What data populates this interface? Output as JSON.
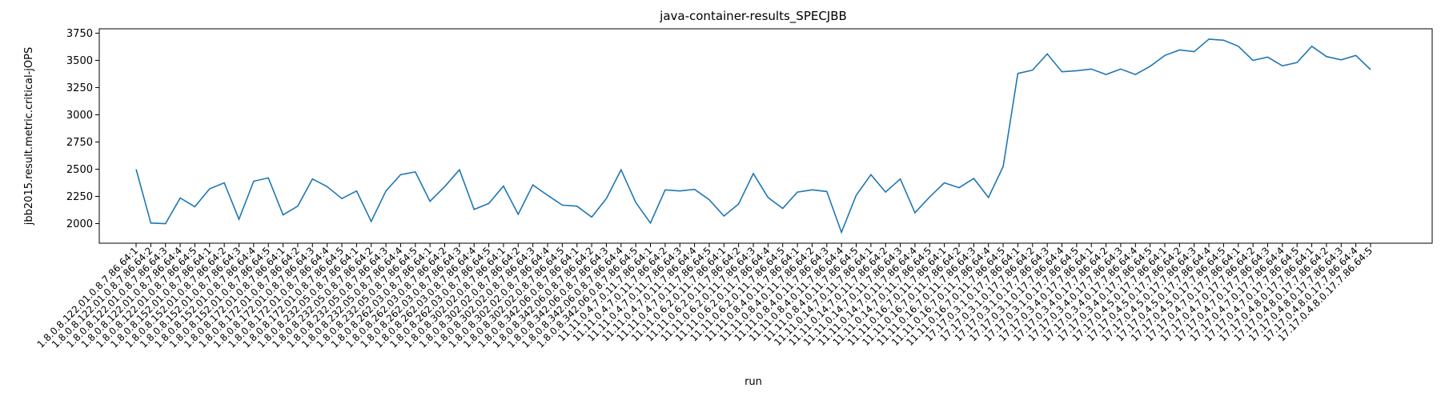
{
  "chart_data": {
    "type": "line",
    "title": "java-container-results_SPECJBB",
    "xlabel": "run",
    "ylabel": "jbb2015.result.metric.critical-jOPS",
    "ylim": [
      1820,
      3790
    ],
    "yticks": [
      2000,
      2250,
      2500,
      2750,
      3000,
      3250,
      3500,
      3750
    ],
    "grid": false,
    "legend": "none",
    "line_color": "#1f77b4",
    "categories": [
      "1.8.0.8.122.01.0.8.7.86.64:1",
      "1.8.0.8.122.01.0.8.7.86.64:2",
      "1.8.0.8.122.01.0.8.7.86.64:3",
      "1.8.0.8.122.01.0.8.7.86.64:4",
      "1.8.0.8.122.01.0.8.7.86.64:5",
      "1.8.0.8.152.01.0.8.7.86.64:1",
      "1.8.0.8.152.01.0.8.7.86.64:2",
      "1.8.0.8.152.01.0.8.7.86.64:3",
      "1.8.0.8.152.01.0.8.7.86.64:4",
      "1.8.0.8.152.01.0.8.7.86.64:5",
      "1.8.0.8.172.01.0.8.7.86.64:1",
      "1.8.0.8.172.01.0.8.7.86.64:2",
      "1.8.0.8.172.01.0.8.7.86.64:3",
      "1.8.0.8.172.01.0.8.7.86.64:4",
      "1.8.0.8.172.01.0.8.7.86.64:5",
      "1.8.0.8.232.05.0.8.7.86.64:1",
      "1.8.0.8.232.05.0.8.7.86.64:2",
      "1.8.0.8.232.05.0.8.7.86.64:3",
      "1.8.0.8.232.05.0.8.7.86.64:4",
      "1.8.0.8.232.05.0.8.7.86.64:5",
      "1.8.0.8.262.03.0.8.7.86.64:1",
      "1.8.0.8.262.03.0.8.7.86.64:2",
      "1.8.0.8.262.03.0.8.7.86.64:3",
      "1.8.0.8.262.03.0.8.7.86.64:4",
      "1.8.0.8.262.03.0.8.7.86.64:5",
      "1.8.0.8.302.02.0.8.7.86.64:1",
      "1.8.0.8.302.02.0.8.7.86.64:2",
      "1.8.0.8.302.02.0.8.7.86.64:3",
      "1.8.0.8.302.02.0.8.7.86.64:4",
      "1.8.0.8.302.02.0.8.7.86.64:5",
      "1.8.0.8.342.06.0.8.7.86.64:1",
      "1.8.0.8.342.06.0.8.7.86.64:2",
      "1.8.0.8.342.06.0.8.7.86.64:3",
      "1.8.0.8.342.06.0.8.7.86.64:4",
      "1.8.0.8.342.06.0.8.7.86.64:5",
      "11.11.0.4.7.0.11.7.86.64:1",
      "11.11.0.4.7.0.11.7.86.64:2",
      "11.11.0.4.7.0.11.7.86.64:3",
      "11.11.0.4.7.0.11.7.86.64:4",
      "11.11.0.4.7.0.11.7.86.64:5",
      "11.11.0.6.2.0.11.7.86.64:1",
      "11.11.0.6.2.0.11.7.86.64:2",
      "11.11.0.6.2.0.11.7.86.64:3",
      "11.11.0.6.2.0.11.7.86.64:4",
      "11.11.0.6.2.0.11.7.86.64:5",
      "11.11.0.8.4.0.11.7.86.64:1",
      "11.11.0.8.4.0.11.7.86.64:2",
      "11.11.0.8.4.0.11.7.86.64:3",
      "11.11.0.8.4.0.11.7.86.64:4",
      "11.11.0.8.4.0.11.7.86.64:5",
      "11.11.0.14.7.0.11.7.86.64:1",
      "11.11.0.14.7.0.11.7.86.64:2",
      "11.11.0.14.7.0.11.7.86.64:3",
      "11.11.0.14.7.0.11.7.86.64:4",
      "11.11.0.14.7.0.11.7.86.64:5",
      "11.11.0.16.7.0.11.7.86.64:1",
      "11.11.0.16.7.0.11.7.86.64:2",
      "11.11.0.16.7.0.11.7.86.64:3",
      "11.11.0.16.7.0.11.7.86.64:4",
      "11.11.0.16.7.0.11.7.86.64:5",
      "17.17.0.3.1.0.17.7.86.64:1",
      "17.17.0.3.1.0.17.7.86.64:2",
      "17.17.0.3.1.0.17.7.86.64:3",
      "17.17.0.3.1.0.17.7.86.64:4",
      "17.17.0.3.1.0.17.7.86.64:5",
      "17.17.0.3.4.0.17.7.86.64:1",
      "17.17.0.3.4.0.17.7.86.64:2",
      "17.17.0.3.4.0.17.7.86.64:3",
      "17.17.0.3.4.0.17.7.86.64:4",
      "17.17.0.3.4.0.17.7.86.64:5",
      "17.17.0.4.5.0.17.7.86.64:1",
      "17.17.0.4.5.0.17.7.86.64:2",
      "17.17.0.4.5.0.17.7.86.64:3",
      "17.17.0.4.5.0.17.7.86.64:4",
      "17.17.0.4.5.0.17.7.86.64:5",
      "17.17.0.4.7.0.17.7.86.64:1",
      "17.17.0.4.7.0.17.7.86.64:2",
      "17.17.0.4.7.0.17.7.86.64:3",
      "17.17.0.4.7.0.17.7.86.64:4",
      "17.17.0.4.7.0.17.7.86.64:5",
      "17.17.0.4.8.0.17.7.86.64:1",
      "17.17.0.4.8.0.17.7.86.64:2",
      "17.17.0.4.8.0.17.7.86.64:3",
      "17.17.0.4.8.0.17.7.86.64:4",
      "17.17.0.4.8.0.17.7.86.64:5"
    ],
    "values": [
      2500,
      2005,
      2000,
      2235,
      2155,
      2320,
      2375,
      2040,
      2390,
      2420,
      2080,
      2160,
      2410,
      2340,
      2230,
      2300,
      2020,
      2300,
      2450,
      2475,
      2205,
      2340,
      2495,
      2130,
      2185,
      2345,
      2085,
      2355,
      2260,
      2170,
      2160,
      2060,
      2230,
      2495,
      2195,
      2005,
      2310,
      2300,
      2315,
      2220,
      2070,
      2180,
      2460,
      2240,
      2140,
      2290,
      2310,
      2295,
      1920,
      2260,
      2450,
      2290,
      2410,
      2100,
      2245,
      2375,
      2330,
      2415,
      2240,
      2525,
      3380,
      3410,
      3560,
      3395,
      3405,
      3420,
      3370,
      3420,
      3370,
      3445,
      3545,
      3595,
      3580,
      3695,
      3685,
      3630,
      3500,
      3530,
      3450,
      3480,
      3630,
      3535,
      3505,
      3545,
      3415
    ]
  }
}
